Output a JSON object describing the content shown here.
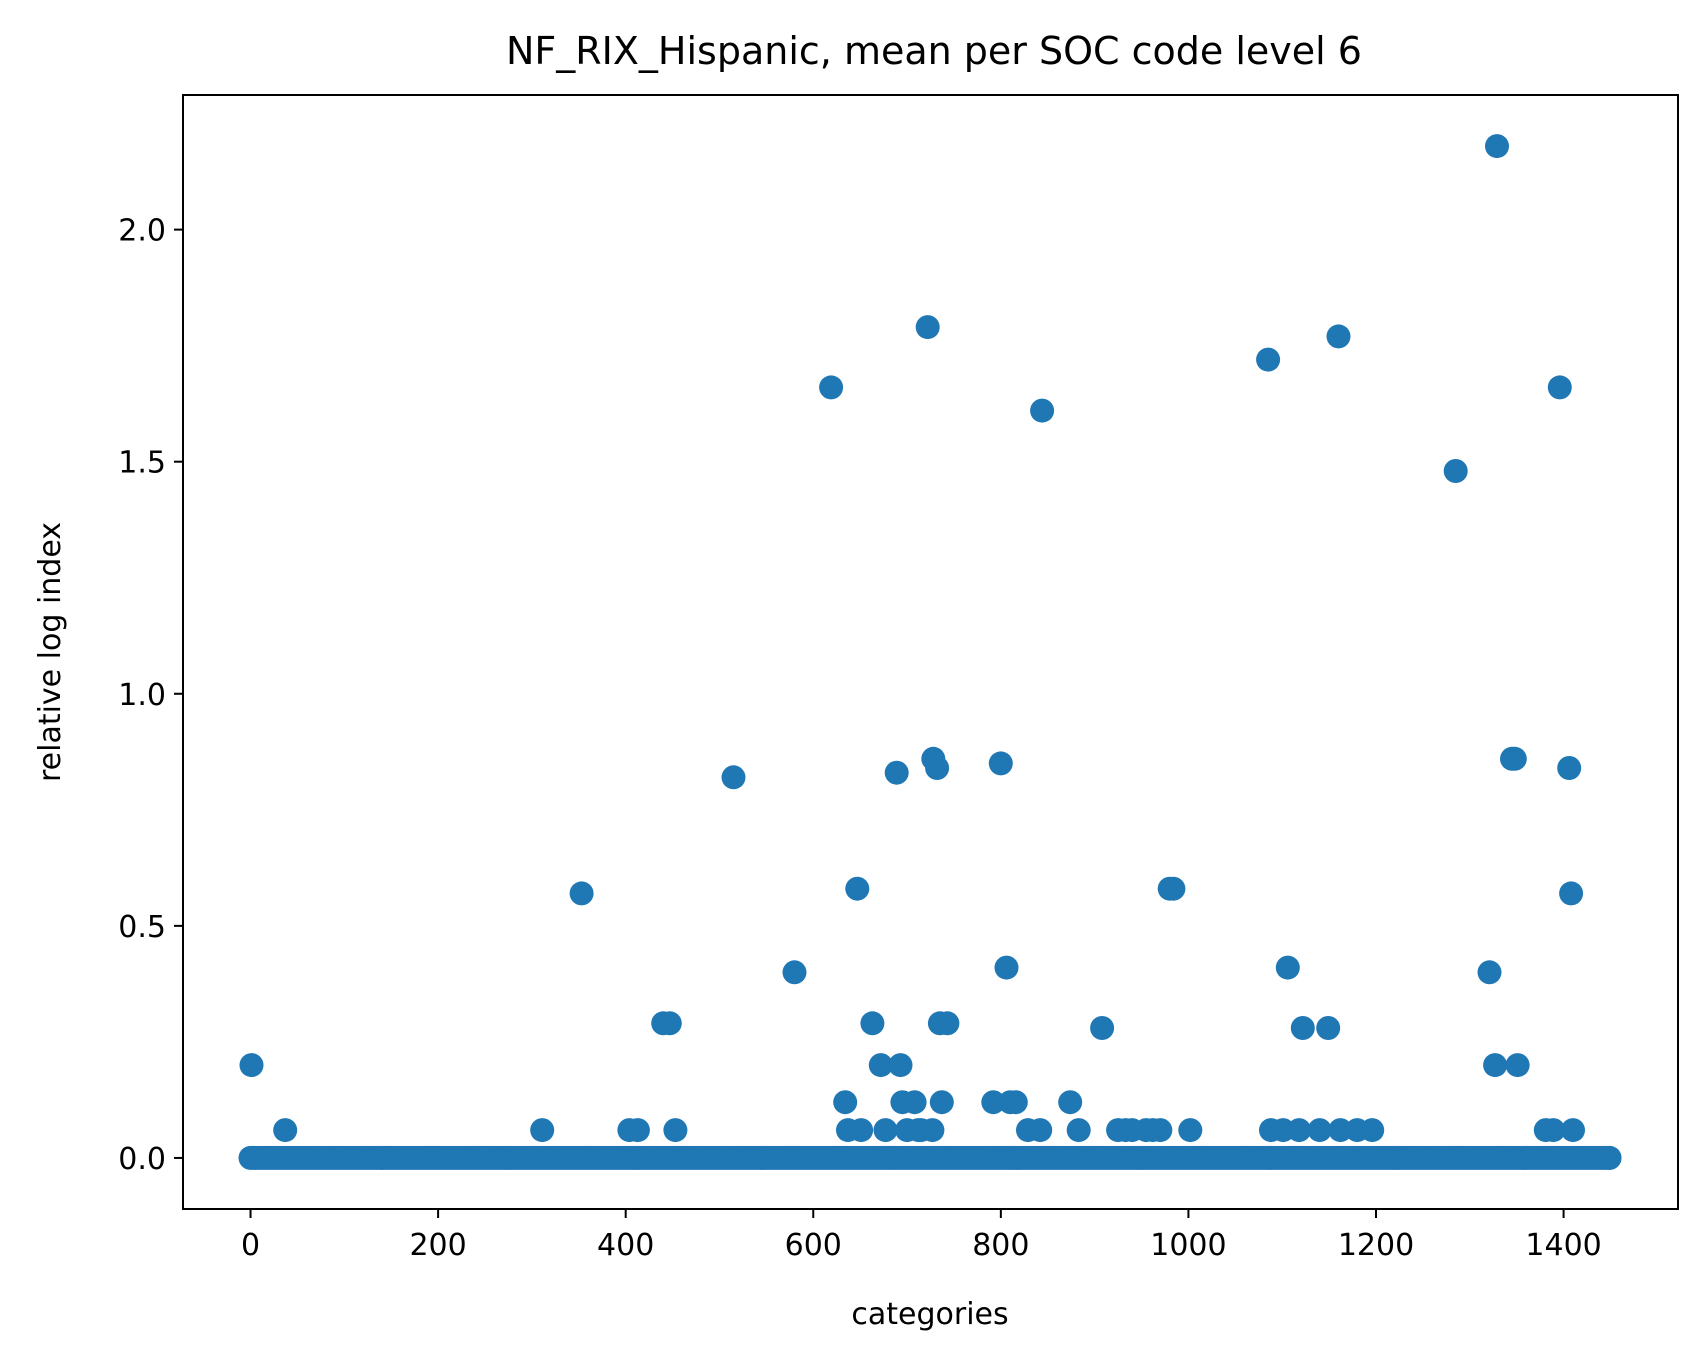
{
  "chart_data": {
    "type": "scatter",
    "title": "NF_RIX_Hispanic, mean per SOC code level 6",
    "xlabel": "categories",
    "ylabel": "relative log index",
    "xlim": [
      -72,
      1522
    ],
    "ylim": [
      -0.11,
      2.29
    ],
    "xticks": [
      0,
      200,
      400,
      600,
      800,
      1000,
      1200,
      1400
    ],
    "xtick_labels": [
      "0",
      "200",
      "400",
      "600",
      "800",
      "1000",
      "1200",
      "1400"
    ],
    "yticks": [
      0.0,
      0.5,
      1.0,
      1.5,
      2.0
    ],
    "ytick_labels": [
      "0.0",
      "0.5",
      "1.0",
      "1.5",
      "2.0"
    ],
    "grid": false,
    "color": "#1f77b4",
    "baseline": {
      "y": 0.0,
      "x_from": 0,
      "x_to": 1449,
      "step": 3
    },
    "series": [
      {
        "x": [
          1,
          37,
          311,
          353,
          404,
          413,
          440,
          447,
          453,
          515,
          580,
          619,
          634,
          637,
          647,
          651,
          663,
          672,
          677,
          689,
          693,
          695,
          700,
          708,
          712,
          715,
          722,
          727,
          728,
          732,
          735,
          737,
          743,
          792,
          800,
          806,
          810,
          816,
          829,
          842,
          844,
          874,
          883,
          908,
          925,
          933,
          940,
          955,
          962,
          970,
          980,
          984,
          1002,
          1085,
          1088,
          1101,
          1106,
          1118,
          1122,
          1140,
          1149,
          1160,
          1162,
          1180,
          1196,
          1285,
          1321,
          1327,
          1329,
          1345,
          1348,
          1351,
          1381,
          1389,
          1396,
          1406,
          1408,
          1410
        ],
        "y": [
          0.2,
          0.06,
          0.06,
          0.57,
          0.06,
          0.06,
          0.29,
          0.29,
          0.06,
          0.82,
          0.4,
          1.66,
          0.12,
          0.06,
          0.58,
          0.06,
          0.29,
          0.2,
          0.06,
          0.83,
          0.2,
          0.12,
          0.06,
          0.12,
          0.06,
          0.06,
          1.79,
          0.06,
          0.86,
          0.84,
          0.29,
          0.12,
          0.29,
          0.12,
          0.85,
          0.41,
          0.12,
          0.12,
          0.06,
          0.06,
          1.61,
          0.12,
          0.06,
          0.28,
          0.06,
          0.06,
          0.06,
          0.06,
          0.06,
          0.06,
          0.58,
          0.58,
          0.06,
          1.72,
          0.06,
          0.06,
          0.41,
          0.06,
          0.28,
          0.06,
          0.28,
          1.77,
          0.06,
          0.06,
          0.06,
          1.48,
          0.4,
          0.2,
          2.18,
          0.86,
          0.86,
          0.2,
          0.06,
          0.06,
          1.66,
          0.84,
          0.57,
          0.06
        ]
      }
    ]
  }
}
